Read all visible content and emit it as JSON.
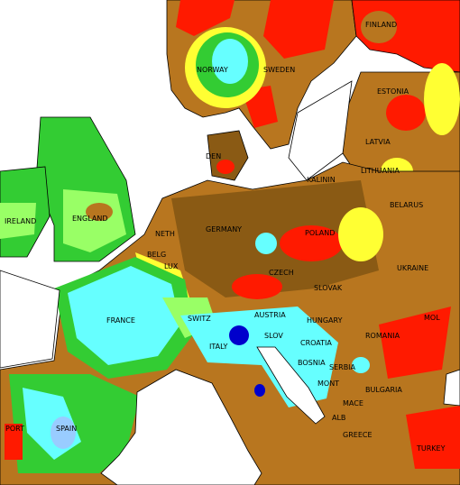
{
  "labels": [
    "FINLAND",
    "NORWAY",
    "SWEDEN",
    "ESTONIA",
    "LATVIA",
    "LITHUANIA",
    "DEN",
    "KALININ",
    "BELARUS",
    "IRELAND",
    "ENGLAND",
    "NETH",
    "GERMANY",
    "POLAND",
    "BELG",
    "LUX",
    "CZECH",
    "UKRAINE",
    "SLOVAK",
    "FRANCE",
    "SWITZ",
    "AUSTRIA",
    "HUNGARY",
    "MOL",
    "ROMANIA",
    "ITALY",
    "SLOV",
    "CROATIA",
    "BOSNIA",
    "SERBIA",
    "BULGARIA",
    "MONT",
    "MACE",
    "ALB",
    "GREECE",
    "PORT",
    "SPAIN",
    "TURKEY"
  ]
}
